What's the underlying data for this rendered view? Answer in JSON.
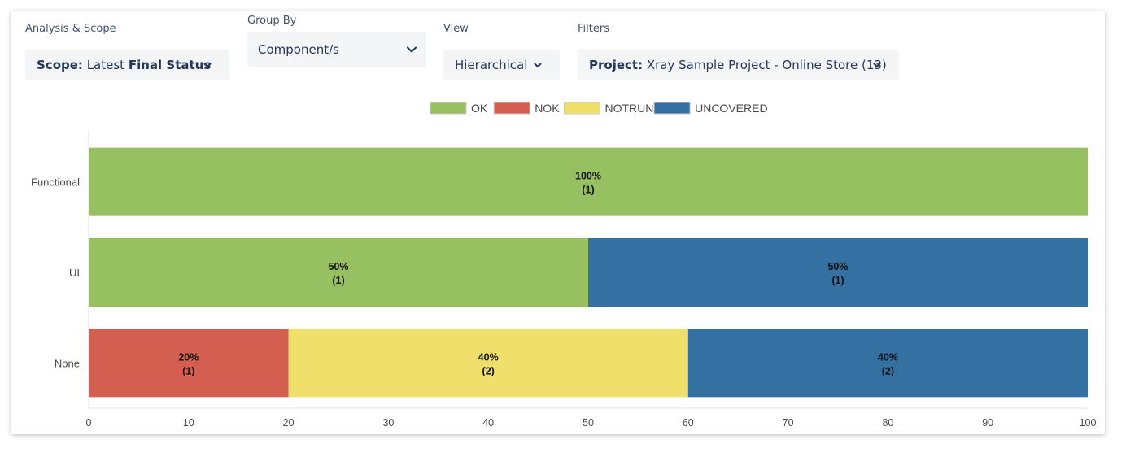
{
  "filters": {
    "analysis_scope": {
      "label": "Analysis & Scope",
      "prefix": "Scope:",
      "text": "Latest",
      "strong": "Final Status",
      "icon": "chevron-down-icon"
    },
    "group_by": {
      "label": "Group By",
      "value": "Component/s",
      "icon": "chevron-down-icon"
    },
    "view": {
      "label": "View",
      "value": "Hierarchical",
      "icon": "chevron-down-icon"
    },
    "filters": {
      "label": "Filters",
      "prefix": "Project:",
      "value": "Xray Sample Project - Online Store (13)",
      "icon": "chevron-down-icon"
    }
  },
  "chart_data": {
    "type": "bar",
    "orientation": "horizontal",
    "stacked": true,
    "categories": [
      "Functional",
      "UI",
      "None"
    ],
    "series": [
      {
        "name": "OK",
        "color": "#97c160",
        "values": [
          100,
          50,
          0
        ],
        "counts": [
          1,
          1,
          0
        ]
      },
      {
        "name": "NOK",
        "color": "#d45e50",
        "values": [
          0,
          0,
          20
        ],
        "counts": [
          0,
          0,
          1
        ]
      },
      {
        "name": "NOTRUN",
        "color": "#f0df6b",
        "values": [
          0,
          0,
          40
        ],
        "counts": [
          0,
          0,
          2
        ]
      },
      {
        "name": "UNCOVERED",
        "color": "#3570a2",
        "values": [
          0,
          50,
          40
        ],
        "counts": [
          0,
          1,
          2
        ]
      }
    ],
    "xlim": [
      0,
      100
    ],
    "xticks": [
      0,
      10,
      20,
      30,
      40,
      50,
      60,
      70,
      80,
      90,
      100
    ],
    "legend": "top-center",
    "grid": false
  }
}
